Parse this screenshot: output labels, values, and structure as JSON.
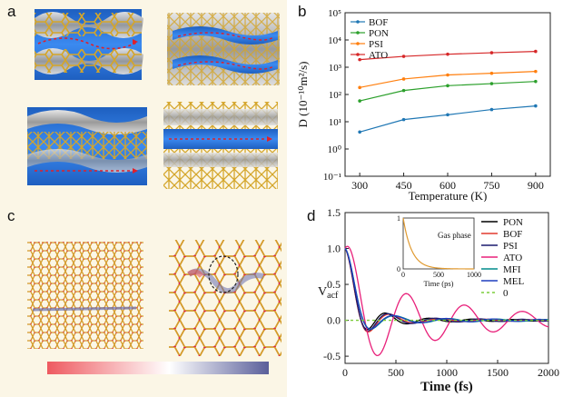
{
  "panels": {
    "a": {
      "label": "a"
    },
    "b": {
      "label": "b"
    },
    "c": {
      "label": "c"
    },
    "d": {
      "label": "d"
    }
  },
  "colors": {
    "channel_blue": "#2a74d8",
    "framework_gold": "#d4a52a",
    "surface_grey": "#c9c9c9",
    "arrow_red": "#e0202a",
    "gradient_start": "#ee5a60",
    "gradient_mid": "#ffffff",
    "gradient_end": "#5a5f9a"
  },
  "chart_data": [
    {
      "id": "b",
      "type": "line",
      "yscale": "log",
      "xlabel": "Temperature (K)",
      "ylabel": "D (10⁻¹⁰m²/s)",
      "x": [
        300,
        450,
        600,
        750,
        900
      ],
      "xticks": [
        "300",
        "450",
        "600",
        "750",
        "900"
      ],
      "xlim": [
        250,
        950
      ],
      "ylim": [
        0.1,
        100000
      ],
      "yticks": [
        {
          "value": 0.1,
          "label": "10⁻¹"
        },
        {
          "value": 1,
          "label": "10⁰"
        },
        {
          "value": 10,
          "label": "10¹"
        },
        {
          "value": 100,
          "label": "10²"
        },
        {
          "value": 1000,
          "label": "10³"
        },
        {
          "value": 10000,
          "label": "10⁴"
        },
        {
          "value": 100000,
          "label": "10⁵"
        }
      ],
      "legend_position": "top-left",
      "series": [
        {
          "name": "BOF",
          "color": "#1f77b4",
          "values": [
            4.2,
            12,
            18,
            28,
            38
          ]
        },
        {
          "name": "PON",
          "color": "#2ca02c",
          "values": [
            58,
            140,
            210,
            250,
            300
          ]
        },
        {
          "name": "PSI",
          "color": "#ff7f0e",
          "values": [
            180,
            370,
            520,
            600,
            700
          ]
        },
        {
          "name": "ATO",
          "color": "#d62728",
          "values": [
            1900,
            2500,
            3000,
            3400,
            3800
          ]
        }
      ]
    },
    {
      "id": "d",
      "type": "line",
      "xlabel": "Time  (fs)",
      "ylabel": "Vacf",
      "ylabel_main": "V",
      "ylabel_sub": "acf",
      "xlim": [
        0,
        2000
      ],
      "ylim": [
        -0.6,
        1.5
      ],
      "xticks": [
        0,
        500,
        1000,
        1500,
        2000
      ],
      "yticks": [
        -0.5,
        0.0,
        0.5,
        1.0,
        1.5
      ],
      "ytick_labels": [
        "-0.5",
        "0.0",
        "0.5",
        "1.0",
        "1.5"
      ],
      "legend_position": "right",
      "series": [
        {
          "name": "PON",
          "color": "#000000",
          "amp": 0.45,
          "T": 390,
          "tau": 260,
          "tail": 0.04
        },
        {
          "name": "BOF",
          "color": "#e23a2e",
          "amp": 0.55,
          "T": 430,
          "tau": 230,
          "tail": 0.04
        },
        {
          "name": "PSI",
          "color": "#1a1a6e",
          "amp": 0.5,
          "T": 410,
          "tau": 240,
          "tail": 0.05
        },
        {
          "name": "ATO",
          "color": "#e8207a",
          "amp": 0.62,
          "T": 560,
          "tau": 900,
          "tail": 0.3
        },
        {
          "name": "MFI",
          "color": "#008b8b",
          "amp": 0.45,
          "T": 460,
          "tau": 230,
          "tail": 0.05
        },
        {
          "name": "MEL",
          "color": "#1f3fbf",
          "amp": 0.45,
          "T": 450,
          "tau": 230,
          "tail": 0.05
        },
        {
          "name": "0",
          "color": "#7ccd3c",
          "dashed": true,
          "zero": true
        }
      ],
      "inset": {
        "title": "Gas phase",
        "xlabel": "Time (ps)",
        "xlim": [
          0,
          1000
        ],
        "xticks": [
          "0",
          "500",
          "1000"
        ],
        "ylim": [
          0,
          1
        ],
        "yticks": [
          "0",
          "1"
        ],
        "decay_ps": 120,
        "color": "#e09a30"
      }
    }
  ]
}
